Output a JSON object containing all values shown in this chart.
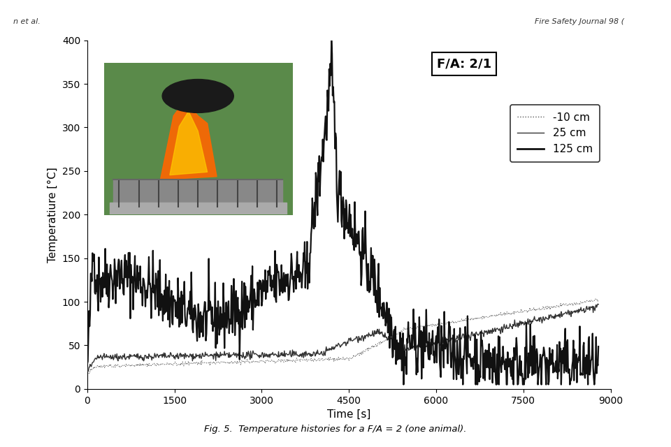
{
  "title": "",
  "xlabel": "Time [s]",
  "ylabel": "Temperatiure [°C]",
  "xlim": [
    0,
    9000
  ],
  "ylim": [
    0,
    400
  ],
  "xticks": [
    0,
    1500,
    3000,
    4500,
    6000,
    7500,
    9000
  ],
  "yticks": [
    0,
    50,
    100,
    150,
    200,
    250,
    300,
    350,
    400
  ],
  "fa_label": "F/A: 2/1",
  "legend_entries": [
    "-10 cm",
    "25 cm",
    "125 cm"
  ],
  "fig_caption": "Fig. 5.  Temperature histories for a F/A = 2 (one animal).",
  "header_left": "n et al.",
  "header_right": "Fire Safety Journal 98 (",
  "background_color": "#ffffff",
  "plot_bg_color": "#ffffff",
  "line_color_10": "#555555",
  "line_color_25": "#333333",
  "line_color_125": "#111111",
  "seed": 42
}
